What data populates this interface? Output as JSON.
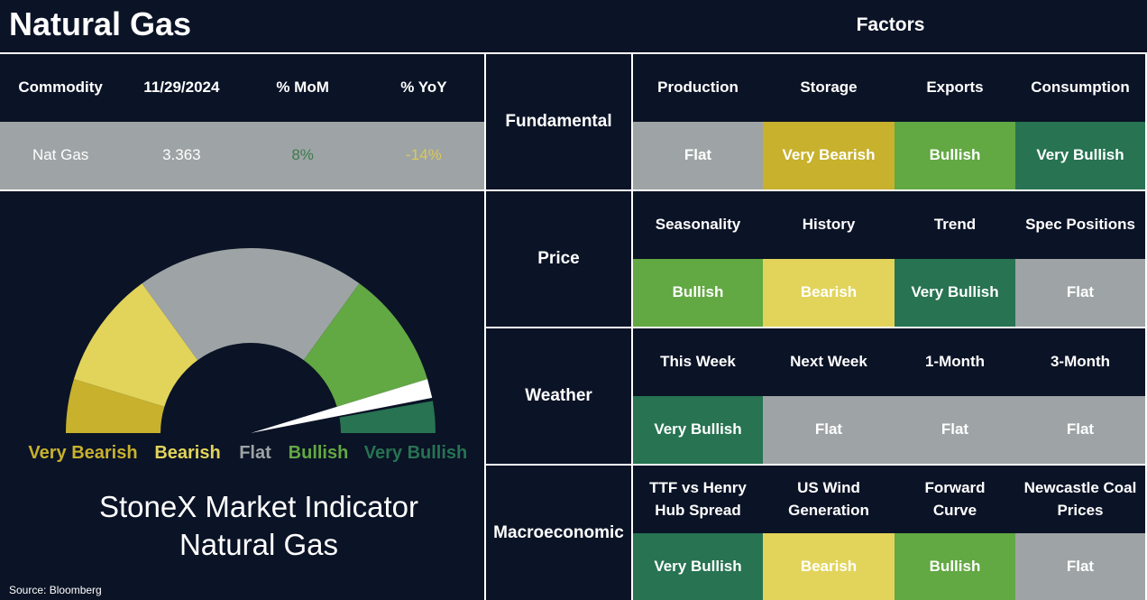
{
  "header": {
    "title": "Natural Gas",
    "factors_title": "Factors"
  },
  "commodity_table": {
    "columns": [
      "Commodity",
      "11/29/2024",
      "% MoM",
      "% YoY"
    ],
    "row": [
      "Nat Gas",
      "3.363",
      "8%",
      "-14%"
    ],
    "row_colors": [
      "#ffffff",
      "#ffffff",
      "#3e7a4f",
      "#d9c95c"
    ]
  },
  "legend": [
    {
      "label": "Very Bearish",
      "color": "#c7b12d"
    },
    {
      "label": "Bearish",
      "color": "#e2d45a"
    },
    {
      "label": "Flat",
      "color": "#9ea4a5"
    },
    {
      "label": "Bullish",
      "color": "#62a843"
    },
    {
      "label": "Very Bullish",
      "color": "#277352"
    }
  ],
  "gauge": {
    "title": [
      "StoneX Market Indicator",
      "Natural Gas"
    ]
  },
  "factors": [
    {
      "group": "Fundamental",
      "items": [
        {
          "name": "Production",
          "signal": "Flat"
        },
        {
          "name": "Storage",
          "signal": "Very Bearish"
        },
        {
          "name": "Exports",
          "signal": "Bullish"
        },
        {
          "name": "Consumption",
          "signal": "Very Bullish"
        }
      ]
    },
    {
      "group": "Price",
      "items": [
        {
          "name": "Seasonality",
          "signal": "Bullish"
        },
        {
          "name": "History",
          "signal": "Bearish"
        },
        {
          "name": "Trend",
          "signal": "Very Bullish"
        },
        {
          "name": "Spec Positions",
          "signal": "Flat"
        }
      ]
    },
    {
      "group": "Weather",
      "items": [
        {
          "name": "This Week",
          "signal": "Very Bullish"
        },
        {
          "name": "Next Week",
          "signal": "Flat"
        },
        {
          "name": "1-Month",
          "signal": "Flat"
        },
        {
          "name": "3-Month",
          "signal": "Flat"
        }
      ]
    },
    {
      "group": "Macroeconomic",
      "items": [
        {
          "name": "TTF vs Henry Hub Spread",
          "signal": "Very Bullish"
        },
        {
          "name": "US Wind Generation",
          "signal": "Bearish"
        },
        {
          "name": "Forward Curve",
          "signal": "Bullish"
        },
        {
          "name": "Newcastle Coal Prices",
          "signal": "Flat"
        }
      ]
    }
  ],
  "source": "Source: Bloomberg"
}
